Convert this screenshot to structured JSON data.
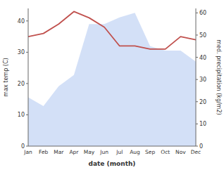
{
  "chart_data": {
    "type": "line",
    "xlabel": "date (month)",
    "ylabel": "max temp (C)",
    "y2label": "med. precipitation (kg/m2)",
    "categories": [
      "Jan",
      "Feb",
      "Mar",
      "Apr",
      "May",
      "Jun",
      "Jul",
      "Aug",
      "Sep",
      "Oct",
      "Nov",
      "Dec"
    ],
    "series": [
      {
        "type": "area",
        "axis": "y2",
        "color": "#aec6f0",
        "values": [
          22,
          18,
          27,
          32,
          55,
          55,
          58,
          60,
          45,
          43,
          43,
          38
        ]
      },
      {
        "type": "line",
        "color": "#c0504d",
        "values": [
          35,
          36,
          39,
          43,
          41,
          38,
          32,
          32,
          31,
          31,
          35,
          34
        ]
      }
    ],
    "ylim": [
      0,
      44
    ],
    "yticks": [
      0,
      10,
      20,
      30,
      40
    ],
    "y2lim": [
      0,
      62
    ],
    "y2ticks": [
      0,
      10,
      20,
      30,
      40,
      50,
      60
    ],
    "grid": false
  }
}
